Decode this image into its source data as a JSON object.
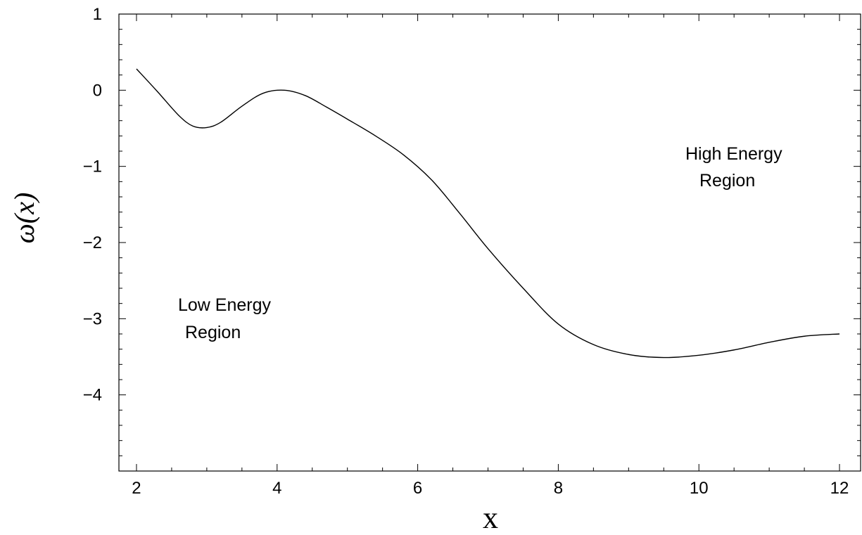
{
  "chart_data": {
    "type": "line",
    "title": "",
    "xlabel": "x",
    "ylabel": "ω(x)",
    "xlim": [
      1.75,
      12.3
    ],
    "ylim": [
      -5,
      1
    ],
    "grid": false,
    "x_ticks": [
      2,
      4,
      6,
      8,
      10,
      12
    ],
    "x_tick_labels": [
      "2",
      "4",
      "6",
      "8",
      "10",
      "12"
    ],
    "y_ticks": [
      1,
      0,
      -1,
      -2,
      -3,
      -4
    ],
    "y_tick_labels": [
      "1",
      "0",
      "−1",
      "−2",
      "−3",
      "−4"
    ],
    "series": [
      {
        "x": [
          2.0,
          2.3,
          2.6,
          2.8,
          3.0,
          3.2,
          3.5,
          3.8,
          4.1,
          4.4,
          4.7,
          5.0,
          5.4,
          5.8,
          6.2,
          6.6,
          7.0,
          7.5,
          8.0,
          8.5,
          9.0,
          9.5,
          10.0,
          10.5,
          11.0,
          11.5,
          12.0
        ],
        "y": [
          0.28,
          -0.02,
          -0.33,
          -0.47,
          -0.49,
          -0.42,
          -0.21,
          -0.04,
          0.0,
          -0.07,
          -0.22,
          -0.38,
          -0.6,
          -0.85,
          -1.18,
          -1.62,
          -2.08,
          -2.6,
          -3.07,
          -3.34,
          -3.47,
          -3.51,
          -3.48,
          -3.41,
          -3.31,
          -3.23,
          -3.2
        ]
      }
    ],
    "annotations": [
      {
        "line1": "High Energy",
        "line2": "Region",
        "x": 10.5,
        "y": -1.0
      },
      {
        "line1": "Low Energy",
        "line2": "Region",
        "x": 3.0,
        "y": -3.0
      }
    ]
  }
}
